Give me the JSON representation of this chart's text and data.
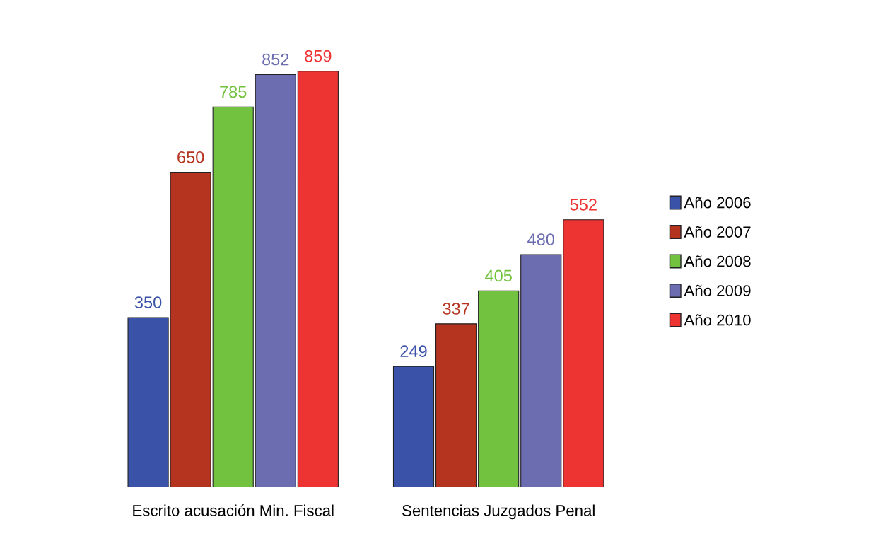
{
  "chart_data": {
    "type": "bar",
    "categories": [
      "Escrito acusación Min. Fiscal",
      "Sentencias Juzgados Penal"
    ],
    "series": [
      {
        "name": "Año 2006",
        "color": "#3a52a8",
        "values": [
          350,
          249
        ]
      },
      {
        "name": "Año 2007",
        "color": "#b5341f",
        "values": [
          650,
          337
        ]
      },
      {
        "name": "Año 2008",
        "color": "#72c13f",
        "values": [
          785,
          405
        ]
      },
      {
        "name": "Año 2009",
        "color": "#6c6db0",
        "values": [
          852,
          480
        ]
      },
      {
        "name": "Año 2010",
        "color": "#ee3333",
        "values": [
          859,
          552
        ]
      }
    ],
    "data_labels": true,
    "legend": "right",
    "grid": false
  }
}
